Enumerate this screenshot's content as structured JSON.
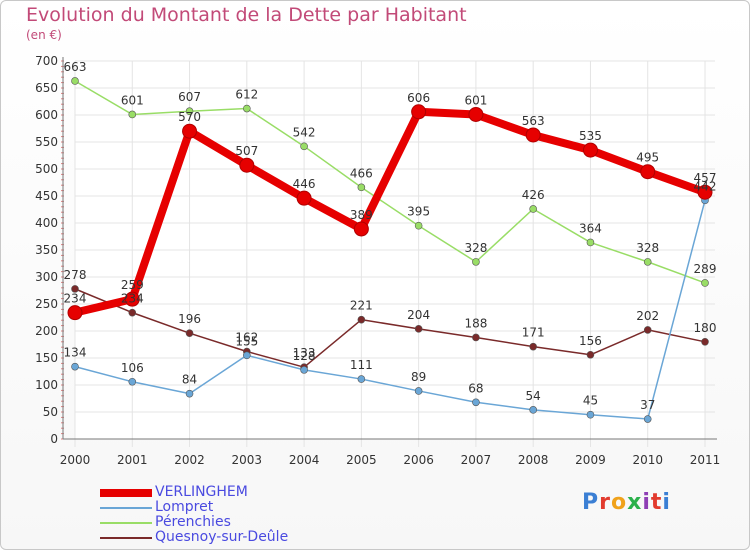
{
  "header": {
    "title": "Evolution du Montant de la Dette par Habitant",
    "unit": "(en €)"
  },
  "logo": {
    "text": "Proxiti",
    "colors": [
      "#3b7fd4",
      "#e23b2e",
      "#f0a21b",
      "#2bb14b",
      "#8e3fb5",
      "#e23b2e",
      "#3b7fd4"
    ]
  },
  "chart_data": {
    "type": "line",
    "x": [
      "2000",
      "2001",
      "2002",
      "2003",
      "2004",
      "2005",
      "2006",
      "2007",
      "2008",
      "2009",
      "2010",
      "2011"
    ],
    "ylim": [
      0,
      700
    ],
    "yticks": [
      0,
      50,
      100,
      150,
      200,
      250,
      300,
      350,
      400,
      450,
      500,
      550,
      600,
      650,
      700
    ],
    "grid": true,
    "legend_position": "bottom-left",
    "series": [
      {
        "name": "VERLINGHEM",
        "color": "#e60000",
        "values": [
          234,
          259,
          570,
          507,
          446,
          389,
          606,
          601,
          563,
          535,
          495,
          457
        ],
        "labels": [
          "234",
          "259",
          "570",
          "507",
          "446",
          "389",
          "606",
          "601",
          "563",
          "535",
          "495",
          "457"
        ]
      },
      {
        "name": "Lompret",
        "color": "#6aa6d6",
        "values": [
          134,
          106,
          84,
          155,
          128,
          111,
          89,
          68,
          54,
          45,
          37,
          442
        ],
        "labels": [
          "134",
          "106",
          "84",
          "155",
          "128",
          "111",
          "89",
          "68",
          "54",
          "45",
          "37",
          "442"
        ]
      },
      {
        "name": "Pérenchies",
        "color": "#99dd66",
        "values": [
          663,
          601,
          607,
          612,
          542,
          466,
          395,
          328,
          426,
          364,
          328,
          289
        ],
        "labels": [
          "663",
          "601",
          "607",
          "612",
          "542",
          "466",
          "395",
          "328",
          "426",
          "364",
          "328",
          "289"
        ]
      },
      {
        "name": "Quesnoy-sur-Deûle",
        "color": "#7a2a2a",
        "values": [
          278,
          234,
          196,
          162,
          133,
          221,
          204,
          188,
          171,
          156,
          202,
          180
        ],
        "labels": [
          "278",
          "234",
          "196",
          "162",
          "133",
          "221",
          "204",
          "188",
          "171",
          "156",
          "202",
          "180"
        ]
      }
    ]
  }
}
